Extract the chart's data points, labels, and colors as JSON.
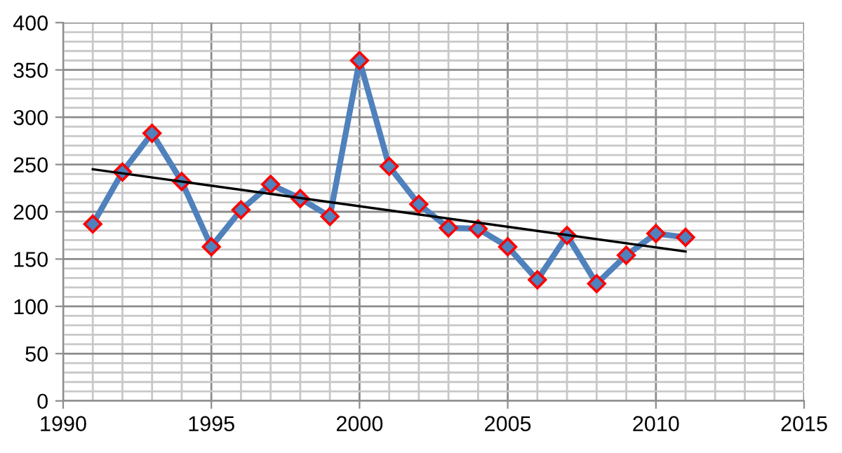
{
  "chart_data": {
    "type": "line",
    "x": [
      1991,
      1992,
      1993,
      1994,
      1995,
      1996,
      1997,
      1998,
      1999,
      2000,
      2001,
      2002,
      2003,
      2004,
      2005,
      2006,
      2007,
      2008,
      2009,
      2010,
      2011
    ],
    "series": [
      {
        "color": "#4f81bd",
        "marker": "diamond",
        "values": [
          187,
          242,
          283,
          232,
          163,
          202,
          229,
          214,
          195,
          360,
          248,
          208,
          183,
          182,
          163,
          128,
          175,
          124,
          154,
          177,
          173
        ]
      },
      {
        "type": "line",
        "color": "#000000",
        "marker": "none",
        "x": [
          1991,
          2011
        ],
        "values": [
          245,
          158
        ]
      }
    ],
    "xlim": [
      1990,
      2015
    ],
    "xticks": [
      1990,
      1995,
      2000,
      2005,
      2010,
      2015
    ],
    "ylim": [
      0,
      400
    ],
    "yticks": [
      0,
      50,
      100,
      150,
      200,
      250,
      300,
      350,
      400
    ],
    "grid": true
  }
}
